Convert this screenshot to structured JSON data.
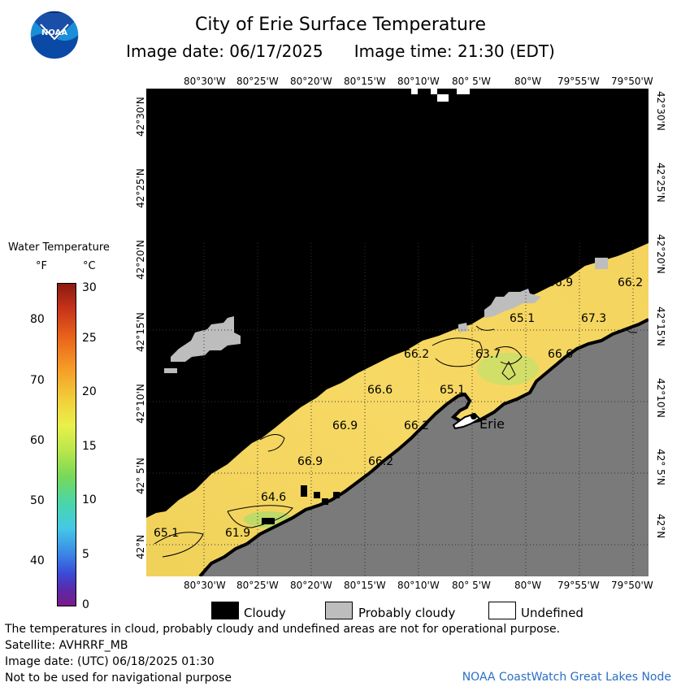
{
  "header": {
    "logo_text": "NOAA",
    "title": "City of Erie Surface Temperature",
    "subtitle_date": "Image date: 06/17/2025",
    "subtitle_time": "Image time: 21:30 (EDT)"
  },
  "axes": {
    "lon_labels": [
      "80°30'W",
      "80°25'W",
      "80°20'W",
      "80°15'W",
      "80°10'W",
      "80° 5'W",
      "80°W",
      "79°55'W",
      "79°50'W"
    ],
    "lat_labels": [
      "42°30'N",
      "42°25'N",
      "42°20'N",
      "42°15'N",
      "42°10'N",
      "42° 5'N",
      "42°N"
    ]
  },
  "legend": {
    "title": "Water Temperature",
    "unit_f": "°F",
    "unit_c": "°C",
    "f_ticks": [
      "80",
      "70",
      "60",
      "50",
      "40"
    ],
    "c_ticks": [
      "30",
      "25",
      "20",
      "15",
      "10",
      "5",
      "0"
    ]
  },
  "map": {
    "city_label": "Erie",
    "temperature_labels": [
      "66.9",
      "66.2",
      "65.1",
      "67.3",
      "66.2",
      "63.7",
      "66.6",
      "66.6",
      "65.1",
      "66.9",
      "66.2",
      "66.9",
      "66.2",
      "64.6",
      "65.1",
      "61.9"
    ]
  },
  "key": {
    "cloudy": "Cloudy",
    "probably_cloudy": "Probably cloudy",
    "undefined": "Undefined",
    "colors": {
      "cloudy": "#000000",
      "probably_cloudy": "#bdbdbd",
      "undefined": "#ffffff",
      "land": "#7a7a7a",
      "water": "#f3d35e"
    }
  },
  "footer": {
    "line1": "The temperatures in cloud, probably cloudy and undefined areas are not for operational purpose.",
    "line2": "Satellite: AVHRRF_MB",
    "line3": "Image date: (UTC) 06/18/2025  01:30",
    "line4": "Not to be used for navigational purpose",
    "credit": "NOAA CoastWatch Great Lakes Node"
  }
}
